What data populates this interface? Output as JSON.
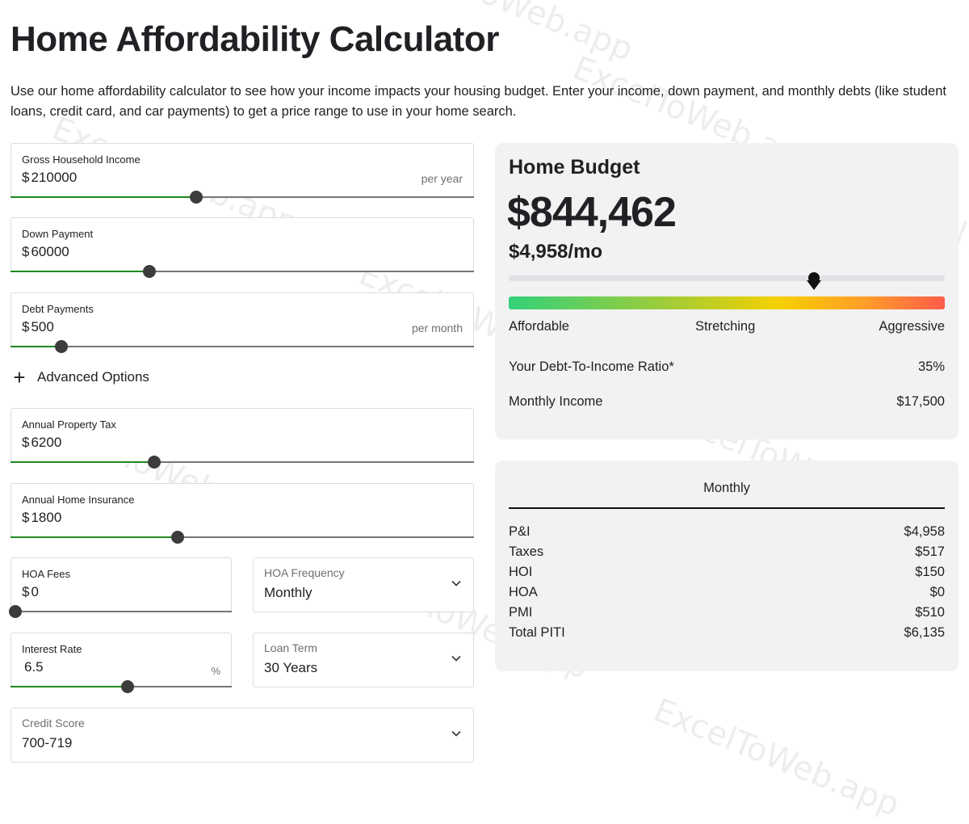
{
  "title": "Home Affordability Calculator",
  "intro": "Use our home affordability calculator to see how your income impacts your housing budget. Enter your income, down payment, and monthly debts (like student loans, credit card, and car payments) to get a price range to use in your home search.",
  "watermark": "ExcelToWeb.app",
  "currency_symbol": "$",
  "inputs": {
    "gross_income": {
      "label": "Gross Household Income",
      "value": "210000",
      "suffix": "per year",
      "slider_level_pct": 40
    },
    "down_payment": {
      "label": "Down Payment",
      "value": "60000",
      "slider_level_pct": 30
    },
    "debt_payments": {
      "label": "Debt Payments",
      "value": "500",
      "suffix": "per month",
      "slider_level_pct": 11
    },
    "property_tax": {
      "label": "Annual Property Tax",
      "value": "6200",
      "slider_level_pct": 31
    },
    "home_insurance": {
      "label": "Annual Home Insurance",
      "value": "1800",
      "slider_level_pct": 36
    },
    "hoa_fees": {
      "label": "HOA Fees",
      "value": "0",
      "slider_level_pct": 0
    },
    "hoa_frequency": {
      "label": "HOA Frequency",
      "value": "Monthly"
    },
    "interest_rate": {
      "label": "Interest Rate",
      "value": "6.5",
      "suffix": "%",
      "slider_level_pct": 53
    },
    "loan_term": {
      "label": "Loan Term",
      "value": "30 Years"
    },
    "credit_score": {
      "label": "Credit Score",
      "value": "700-719"
    }
  },
  "advanced": {
    "icon": "plus-icon",
    "label": "Advanced Options"
  },
  "budget": {
    "title": "Home Budget",
    "amount": "$844,462",
    "monthly": "$4,958/mo",
    "meter_level_pct": 70,
    "scale": [
      "Affordable",
      "Stretching",
      "Aggressive"
    ],
    "dti_label": "Your Debt-To-Income Ratio*",
    "dti_value": "35%",
    "income_label": "Monthly Income",
    "income_value": "$17,500"
  },
  "breakdown": {
    "header": "Monthly",
    "rows": [
      {
        "label": "P&I",
        "value": "$4,958"
      },
      {
        "label": "Taxes",
        "value": "$517"
      },
      {
        "label": "HOI",
        "value": "$150"
      },
      {
        "label": "HOA",
        "value": "$0"
      },
      {
        "label": "PMI",
        "value": "$510"
      },
      {
        "label": "Total PITI",
        "value": "$6,135"
      }
    ]
  },
  "colors": {
    "slider_fill": "#1e8a1e",
    "panel_bg": "#f2f2f2",
    "gradient": [
      "#33d17a",
      "#9ccc3a",
      "#f6d000",
      "#ff9c2a",
      "#ff5b4a"
    ]
  }
}
